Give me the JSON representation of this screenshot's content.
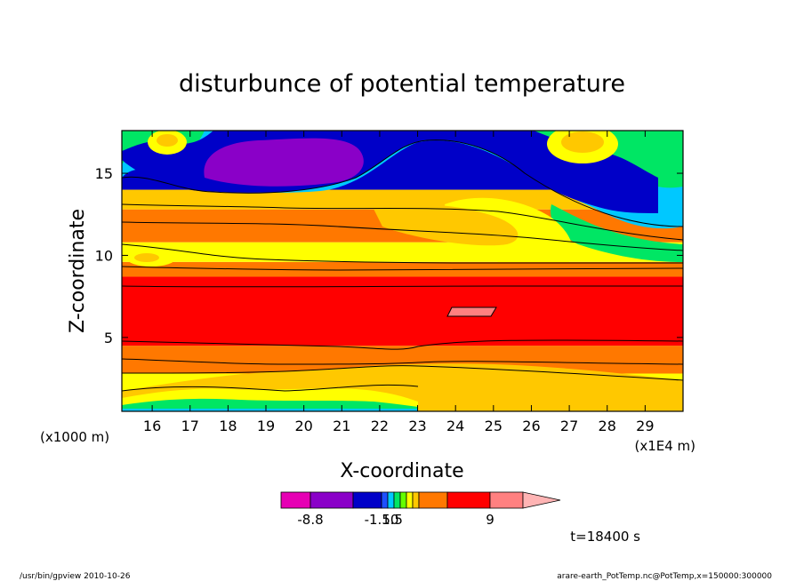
{
  "chart_data": {
    "type": "heatmap",
    "title": "disturbunce of potential temperature",
    "xlabel": "X-coordinate",
    "ylabel": "Z-coordinate",
    "x_unit_left": "(x1000 m)",
    "x_unit_right": "(x1E4 m)",
    "xlim": [
      15.2,
      30.0
    ],
    "ylim": [
      0.5,
      17.6
    ],
    "xticks": [
      "16",
      "17",
      "18",
      "19",
      "20",
      "21",
      "22",
      "23",
      "24",
      "25",
      "26",
      "27",
      "28",
      "29"
    ],
    "yticks": [
      "5",
      "10",
      "15"
    ],
    "colorbar": {
      "labels": [
        "-8.8",
        "-1.50",
        "1.5",
        "9"
      ],
      "colors": [
        "#e600b4",
        "#8a00c8",
        "#0000c8",
        "#1e50ff",
        "#00c8ff",
        "#00e664",
        "#64ff00",
        "#ffff00",
        "#ffc800",
        "#ff7800",
        "#ff0000",
        "#ff8080",
        "#ffb4b4"
      ]
    },
    "bands": [
      {
        "z": [
          0.5,
          0.8
        ],
        "color": "#0000c8"
      },
      {
        "z": [
          0.8,
          1.4
        ],
        "color": "#00e664"
      },
      {
        "z": [
          1.4,
          2.8
        ],
        "color": "#ffff00"
      },
      {
        "z": [
          2.8,
          4.5
        ],
        "color": "#ff7800"
      },
      {
        "z": [
          4.5,
          8.7
        ],
        "color": "#ff0000"
      },
      {
        "z": [
          8.7,
          9.6
        ],
        "color": "#ff7800"
      },
      {
        "z": [
          9.6,
          10.8
        ],
        "color": "#ffff00"
      },
      {
        "z": [
          10.8,
          12.8
        ],
        "color": "#ff7800"
      },
      {
        "z": [
          12.8,
          14.0
        ],
        "color": "#ffc800"
      },
      {
        "z": [
          14.0,
          17.6
        ],
        "color": "#0000c8"
      }
    ],
    "time_label": "t=18400 s"
  },
  "footer": {
    "left": "/usr/bin/gpview   2010-10-26",
    "right": "arare-earth_PotTemp.nc@PotTemp,x=150000:300000"
  }
}
